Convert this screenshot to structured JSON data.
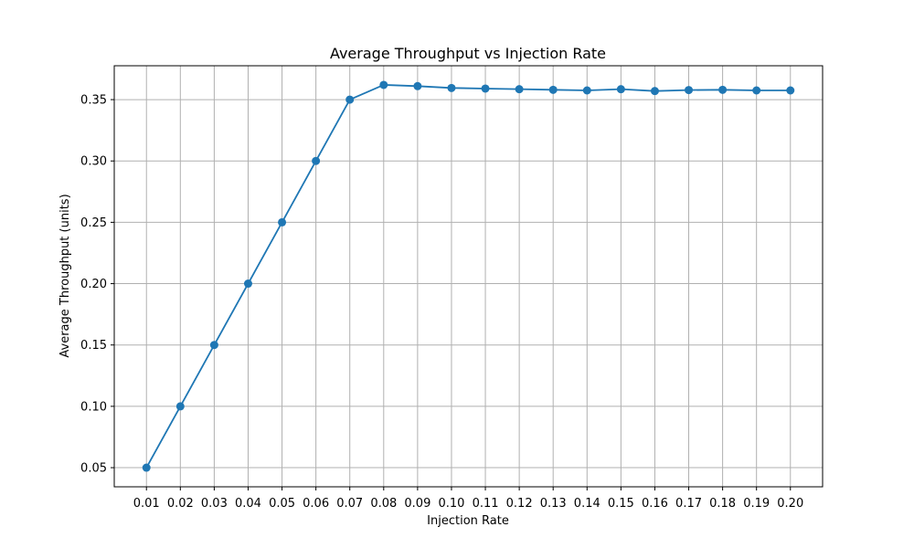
{
  "chart_data": {
    "type": "line",
    "title": "Average Throughput vs Injection Rate",
    "xlabel": "Injection Rate",
    "ylabel": "Average Throughput (units)",
    "x": [
      0.01,
      0.02,
      0.03,
      0.04,
      0.05,
      0.06,
      0.07,
      0.08,
      0.09,
      0.1,
      0.11,
      0.12,
      0.13,
      0.14,
      0.15,
      0.16,
      0.17,
      0.18,
      0.19,
      0.2
    ],
    "x_tick_labels": [
      "0.01",
      "0.02",
      "0.03",
      "0.04",
      "0.05",
      "0.06",
      "0.07",
      "0.08",
      "0.09",
      "0.10",
      "0.11",
      "0.12",
      "0.13",
      "0.14",
      "0.15",
      "0.16",
      "0.17",
      "0.18",
      "0.19",
      "0.20"
    ],
    "series": [
      {
        "values": [
          0.05,
          0.1,
          0.15,
          0.2,
          0.25,
          0.3,
          0.35,
          0.362,
          0.361,
          0.3595,
          0.359,
          0.3585,
          0.358,
          0.3575,
          0.3585,
          0.357,
          0.3578,
          0.358,
          0.3575,
          0.3575
        ],
        "color": "#1f77b4",
        "marker": "circle"
      }
    ],
    "y_ticks": [
      0.05,
      0.1,
      0.15,
      0.2,
      0.25,
      0.3,
      0.35
    ],
    "y_tick_labels": [
      "0.05",
      "0.10",
      "0.15",
      "0.20",
      "0.25",
      "0.30",
      "0.35"
    ],
    "xlim": [
      0.0005,
      0.2095
    ],
    "ylim": [
      0.0344,
      0.3776
    ],
    "grid": true,
    "legend": "none"
  }
}
